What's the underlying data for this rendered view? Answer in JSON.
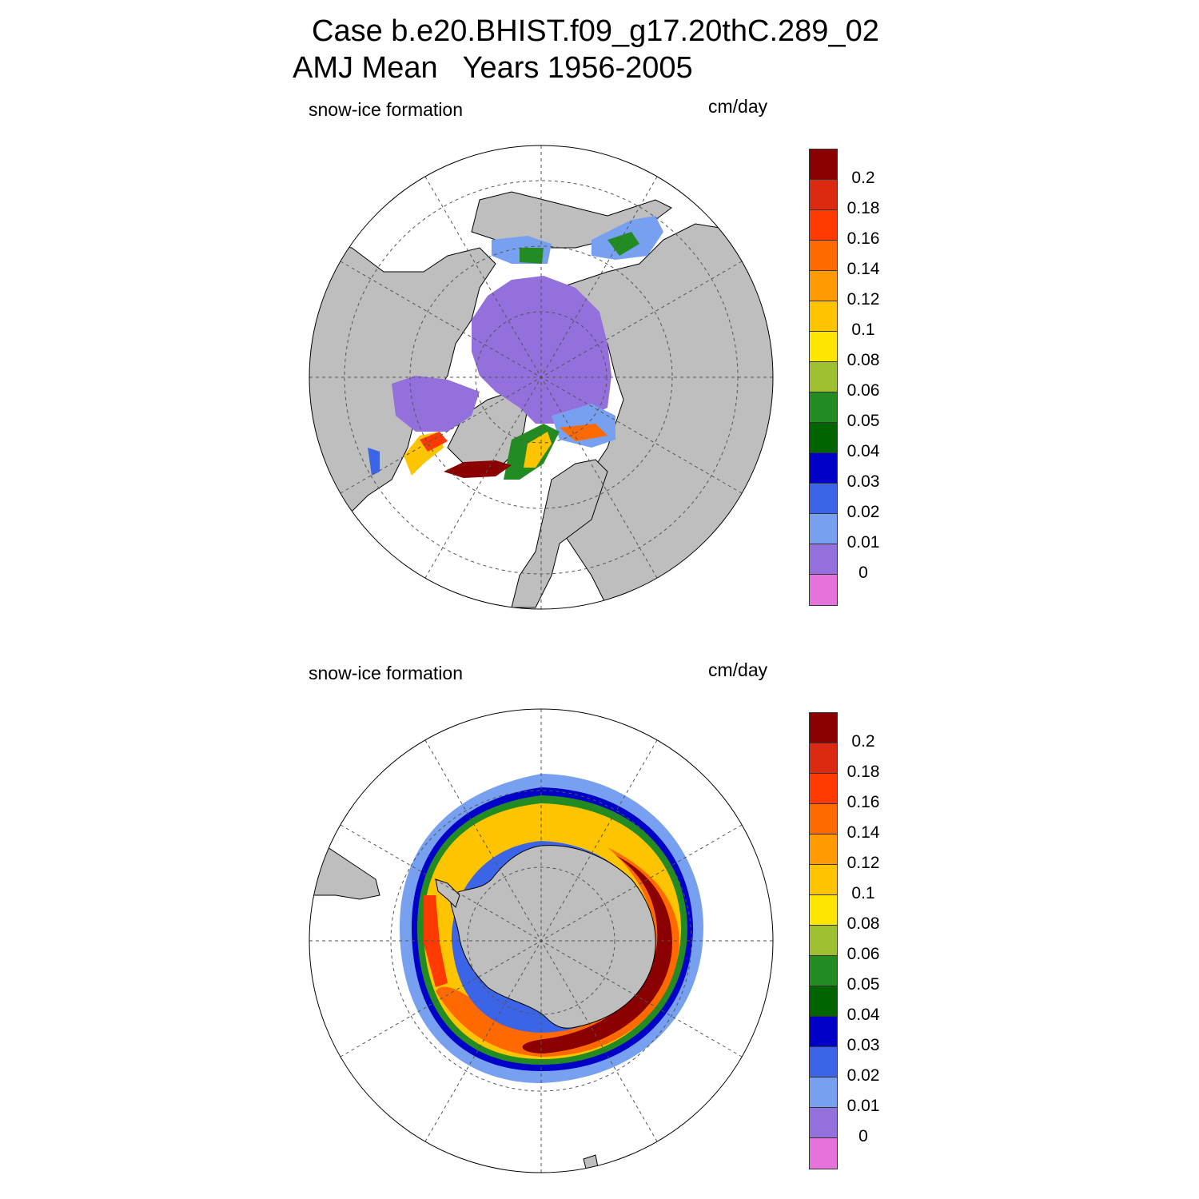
{
  "title_line1": "Case b.e20.BHIST.f09_g17.20thC.289_02",
  "title_line2": "AMJ Mean   Years 1956-2005",
  "panels": [
    {
      "id": "north",
      "variable": "snow-ice formation",
      "units": "cm/day"
    },
    {
      "id": "south",
      "variable": "snow-ice formation",
      "units": "cm/day"
    }
  ],
  "colorbar": {
    "labels": [
      "0.2",
      "0.18",
      "0.16",
      "0.14",
      "0.12",
      "0.1",
      "0.08",
      "0.06",
      "0.05",
      "0.04",
      "0.03",
      "0.02",
      "0.01",
      "0"
    ],
    "colors": [
      "#8b0000",
      "#dc2a12",
      "#ff3a00",
      "#ff6a00",
      "#ff9a00",
      "#ffc400",
      "#ffe600",
      "#9dbf30",
      "#228b22",
      "#006400",
      "#0000c8",
      "#3c64e6",
      "#78a0f0",
      "#9370db",
      "#e673dc"
    ]
  },
  "colors": {
    "land": "#bebebe",
    "ocean": "#ffffff"
  }
}
